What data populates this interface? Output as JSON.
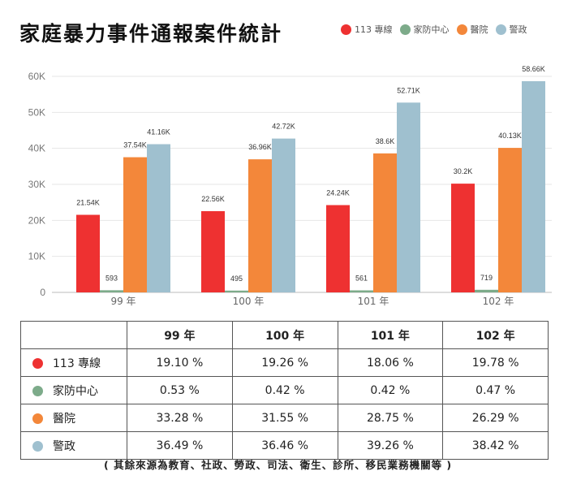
{
  "page": {
    "title": "家庭暴力事件通報案件統計",
    "note": "( 其餘來源為教育、社政、勞政、司法、衛生、診所、移民業務機關等 )"
  },
  "colors": {
    "hotline": "#ee3131",
    "family": "#7dab8a",
    "hospital": "#f3873a",
    "police": "#9fc0cf",
    "grid": "#e6e6e6",
    "axis": "#bbbbbb"
  },
  "chart_data": {
    "type": "bar",
    "categories": [
      "99 年",
      "100 年",
      "101 年",
      "102 年"
    ],
    "series": [
      {
        "name": "113 專線",
        "values": [
          21540,
          22560,
          24240,
          30200
        ],
        "labels": [
          "21.54K",
          "22.56K",
          "24.24K",
          "30.2K"
        ]
      },
      {
        "name": "家防中心",
        "values": [
          593,
          495,
          561,
          719
        ],
        "labels": [
          "593",
          "495",
          "561",
          "719"
        ]
      },
      {
        "name": "醫院",
        "values": [
          37540,
          36960,
          38600,
          40130
        ],
        "labels": [
          "37.54K",
          "36.96K",
          "38.6K",
          "40.13K"
        ]
      },
      {
        "name": "警政",
        "values": [
          41160,
          42720,
          52710,
          58660
        ],
        "labels": [
          "41.16K",
          "42.72K",
          "52.71K",
          "58.66K"
        ]
      }
    ],
    "yticks": [
      0,
      10000,
      20000,
      30000,
      40000,
      50000,
      60000
    ],
    "ytick_labels": [
      "0",
      "10K",
      "20K",
      "30K",
      "40K",
      "50K",
      "60K"
    ],
    "ylim": [
      0,
      60000
    ],
    "grid": true,
    "legend": "top-right"
  },
  "table": {
    "headers": [
      "",
      "99 年",
      "100 年",
      "101 年",
      "102 年"
    ],
    "rows": [
      {
        "name": "113 專線",
        "cells": [
          "19.10 %",
          "19.26 %",
          "18.06 %",
          "19.78 %"
        ]
      },
      {
        "name": "家防中心",
        "cells": [
          "0.53 %",
          "0.42 %",
          "0.42 %",
          "0.47 %"
        ]
      },
      {
        "name": "醫院",
        "cells": [
          "33.28 %",
          "31.55 %",
          "28.75 %",
          "26.29 %"
        ]
      },
      {
        "name": "警政",
        "cells": [
          "36.49 %",
          "36.46 %",
          "39.26 %",
          "38.42 %"
        ]
      }
    ]
  }
}
